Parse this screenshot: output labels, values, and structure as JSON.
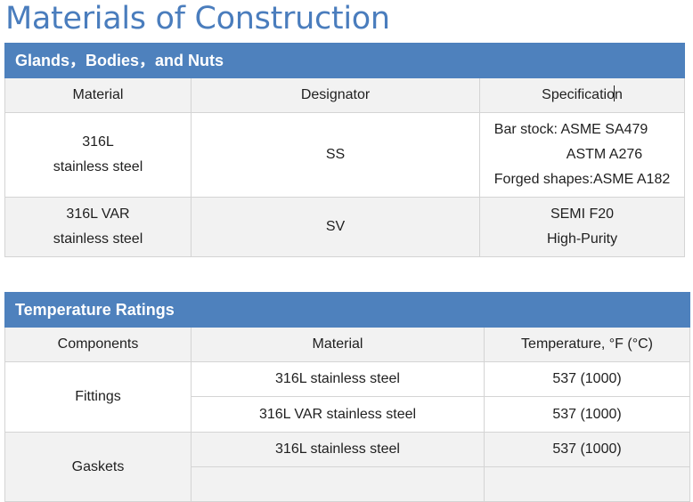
{
  "page": {
    "title": "Materials of Construction"
  },
  "glands_table": {
    "header": "Glands，Bodies，and Nuts",
    "columns": [
      "Material",
      "Designator",
      "Specification"
    ],
    "rows": [
      {
        "material_line1": "316L",
        "material_line2": "stainless steel",
        "designator": "SS",
        "spec_line1": "Bar stock: ASME SA479",
        "spec_line2": "ASTM A276",
        "spec_line3": "Forged shapes:ASME A182"
      },
      {
        "material_line1": "316L VAR",
        "material_line2": "stainless steel",
        "designator": "SV",
        "spec_line1": "SEMI F20",
        "spec_line2": "High-Purity"
      }
    ]
  },
  "temperature_table": {
    "header": "Temperature Ratings",
    "columns": [
      "Components",
      "Material",
      "Temperature, °F (°C)"
    ],
    "groups": [
      {
        "component": "Fittings",
        "rows": [
          {
            "material": "316L stainless steel",
            "temperature": "537 (1000)"
          },
          {
            "material": "316L VAR stainless steel",
            "temperature": "537 (1000)"
          }
        ]
      },
      {
        "component": "Gaskets",
        "rows": [
          {
            "material": "316L stainless steel",
            "temperature": "537 (1000)"
          },
          {
            "material": "",
            "temperature": ""
          }
        ]
      }
    ]
  }
}
